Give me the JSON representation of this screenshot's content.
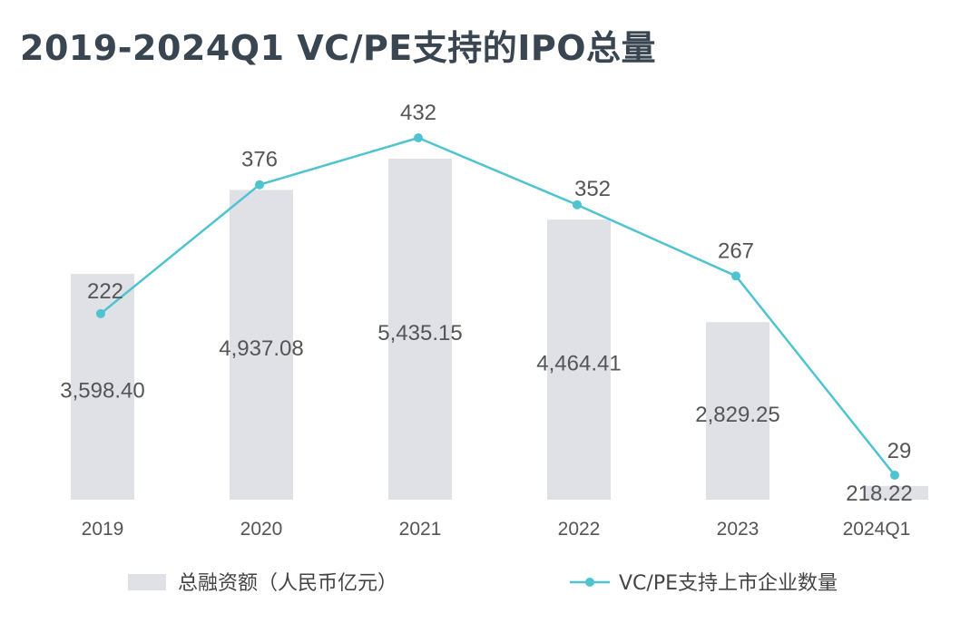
{
  "chart_data": {
    "type": "bar",
    "title": "2019-2024Q1 VC/PE支持的IPO总量",
    "categories": [
      "2019",
      "2020",
      "2021",
      "2022",
      "2023",
      "2024Q1"
    ],
    "series": [
      {
        "name": "总融资额（人民币亿元）",
        "type": "bar",
        "values": [
          3598.4,
          4937.08,
          5435.15,
          4464.41,
          2829.25,
          218.22
        ],
        "labels": [
          "3,598.40",
          "4,937.08",
          "5,435.15",
          "4,464.41",
          "2,829.25",
          "218.22"
        ],
        "color": "#dfe1e6"
      },
      {
        "name": "VC/PE支持上市企业数量",
        "type": "line",
        "values": [
          222,
          376,
          432,
          352,
          267,
          29
        ],
        "labels": [
          "222",
          "376",
          "432",
          "352",
          "267",
          "29"
        ],
        "color": "#4fc3cf"
      }
    ],
    "legend": "bottom",
    "grid": false,
    "xlabel": "",
    "ylabel": ""
  }
}
